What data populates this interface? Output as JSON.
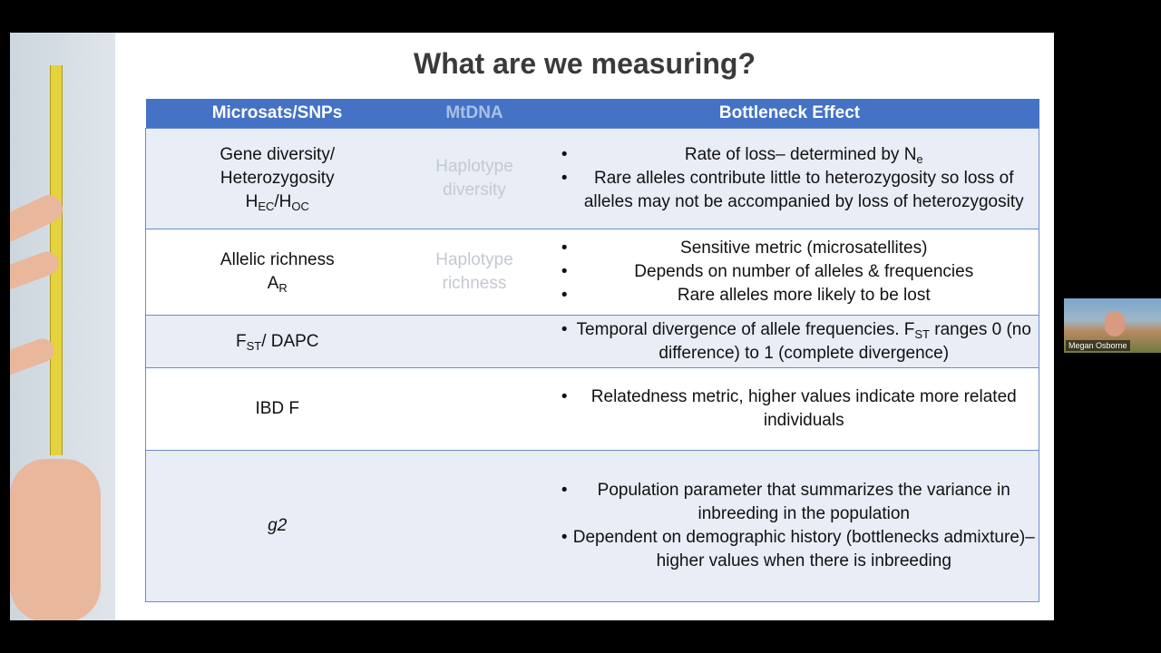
{
  "slide": {
    "title": "What are we measuring?",
    "table": {
      "header": [
        "Microsats/SNPs",
        "MtDNA",
        "Bottleneck Effect"
      ],
      "rows": [
        {
          "metric": [
            [
              "Gene diversity/"
            ],
            [
              "Heterozygosity"
            ],
            [
              "H",
              {
                "sub": "EC"
              },
              "/H",
              {
                "sub": "OC"
              }
            ]
          ],
          "mtdna": [
            [
              "Haplotype"
            ],
            [
              "diversity"
            ]
          ],
          "effect": [
            [
              "Rate of loss– determined by N",
              {
                "sub": "e"
              }
            ],
            [
              "Rare alleles contribute little to heterozygosity so loss of alleles may not be accompanied by loss of heterozygosity"
            ]
          ]
        },
        {
          "metric": [
            [
              "Allelic richness"
            ],
            [
              "A",
              {
                "sub": "R"
              }
            ]
          ],
          "mtdna": [
            [
              "Haplotype"
            ],
            [
              "richness"
            ]
          ],
          "effect": [
            [
              "Sensitive metric (microsatellites)"
            ],
            [
              "Depends on number of alleles & frequencies"
            ],
            [
              "Rare alleles more likely to be lost"
            ]
          ]
        },
        {
          "metric": [
            [
              "F",
              {
                "sub": "ST"
              },
              "/ DAPC"
            ]
          ],
          "effect": [
            [
              "Temporal divergence of allele frequencies. F",
              {
                "sub": "ST"
              },
              " ranges 0 (no difference) to 1 (complete divergence)"
            ]
          ]
        },
        {
          "metric": [
            [
              "IBD F"
            ]
          ],
          "effect": [
            [
              "Relatedness metric, higher values indicate more related individuals"
            ]
          ]
        },
        {
          "metric": [
            [
              {
                "i": "g2"
              }
            ]
          ],
          "effect": [
            [
              "Population parameter that summarizes the variance in inbreeding in the population"
            ],
            [
              "Dependent on demographic history (bottlenecks admixture)– higher values when there is inbreeding"
            ]
          ]
        }
      ]
    }
  },
  "participant": {
    "name": "Megan Osborne"
  }
}
